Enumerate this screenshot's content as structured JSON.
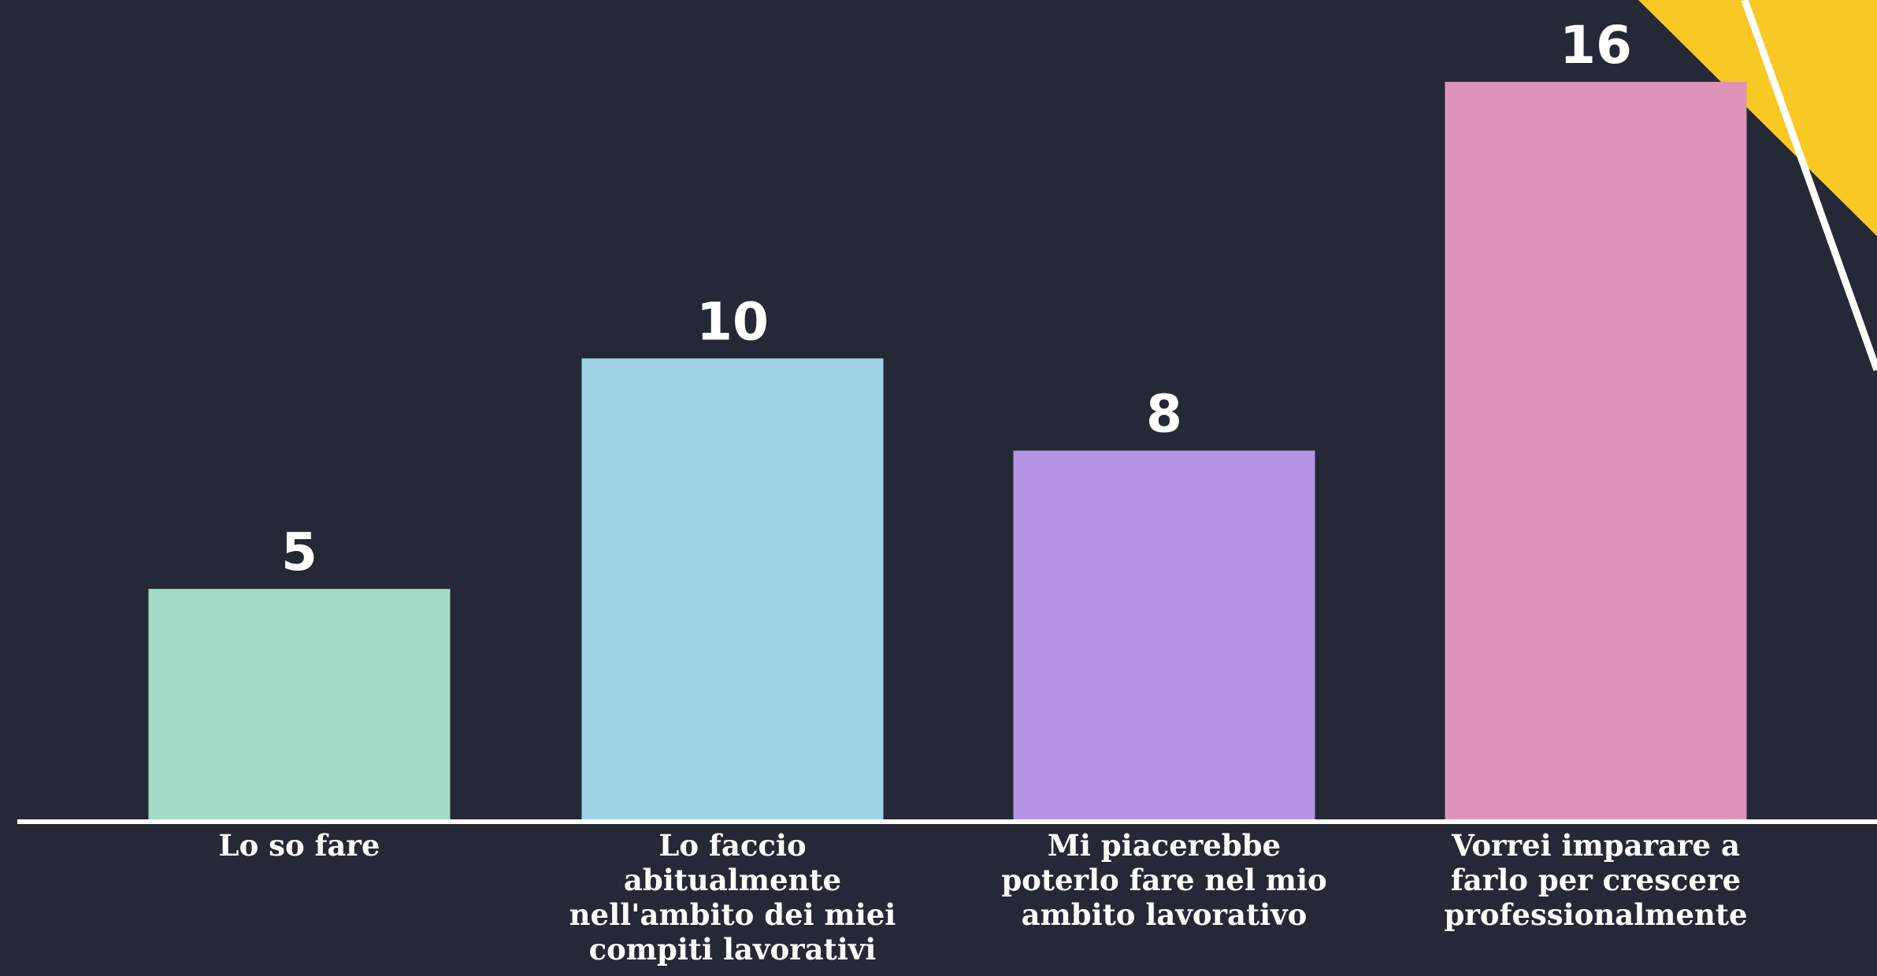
{
  "chart_data": {
    "type": "bar",
    "categories": [
      "Lo so fare",
      "Lo faccio abitualmente nell'ambito dei miei compiti lavorativi",
      "Mi piacerebbe poterlo fare nel mio ambito lavorativo",
      "Vorrei imparare a farlo per crescere professionalmente"
    ],
    "category_lines": [
      [
        "Lo so fare"
      ],
      [
        "Lo faccio",
        "abitualmente",
        "nell'ambito dei miei",
        "compiti lavorativi"
      ],
      [
        "Mi piacerebbe",
        "poterlo fare nel mio",
        "ambito lavorativo"
      ],
      [
        "Vorrei imparare a",
        "farlo per crescere",
        "professionalmente"
      ]
    ],
    "values": [
      5,
      10,
      8,
      16
    ],
    "bar_colors": [
      "#a6dcc5",
      "#a0d3e6",
      "#b595e3",
      "#de94b8"
    ],
    "value_labels": [
      "5",
      "10",
      "8",
      "16"
    ],
    "title": "",
    "xlabel": "",
    "ylabel": "",
    "ylim": [
      0,
      16
    ],
    "grid": false,
    "legend": "none",
    "axis_color": "#ffffff",
    "background": "#252936",
    "accent_color": "#f8c824"
  }
}
